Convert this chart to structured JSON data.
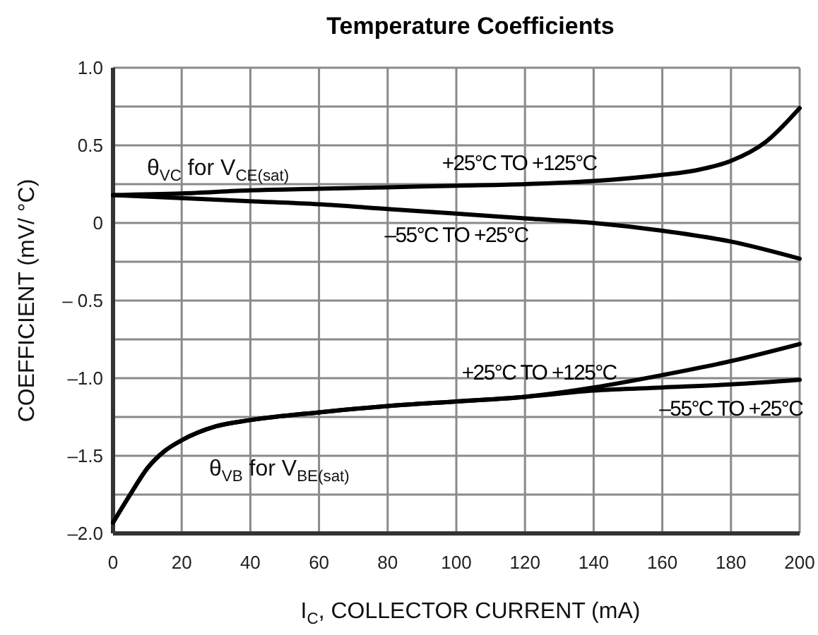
{
  "chart_data": {
    "type": "line",
    "title": "Temperature Coefficients",
    "xlabel": "I$_{C}$, COLLECTOR CURRENT (mA)",
    "ylabel": "COEFFICIENT (mV/ °C)",
    "xlim": [
      0,
      200
    ],
    "xticks": [
      0,
      20,
      40,
      60,
      80,
      100,
      120,
      140,
      160,
      180,
      200
    ],
    "ylim": [
      -2,
      1
    ],
    "yticks": [
      {
        "value": -2,
        "label": "–2.0"
      },
      {
        "value": -1.75,
        "label": null
      },
      {
        "value": -1.5,
        "label": "–1.5"
      },
      {
        "value": -1.25,
        "label": null
      },
      {
        "value": -1,
        "label": "–1.0"
      },
      {
        "value": -0.75,
        "label": null
      },
      {
        "value": -0.5,
        "label": "– 0.5"
      },
      {
        "value": -0.25,
        "label": null
      },
      {
        "value": 0,
        "label": "0"
      },
      {
        "value": 0.25,
        "label": null
      },
      {
        "value": 0.5,
        "label": "0.5"
      },
      {
        "value": 0.75,
        "label": null
      },
      {
        "value": 1,
        "label": "1.0"
      }
    ],
    "grid": true,
    "marker": "none",
    "line_style": "solid",
    "series": [
      {
        "name": "+25°C TO +125°C",
        "color": "#000000",
        "x": [
          0,
          20,
          40,
          60,
          80,
          100,
          120,
          140,
          160,
          170,
          180,
          190,
          200
        ],
        "values": [
          0.18,
          0.19,
          0.21,
          0.22,
          0.23,
          0.24,
          0.25,
          0.27,
          0.31,
          0.34,
          0.4,
          0.52,
          0.74
        ]
      },
      {
        "name": "–55°C TO +25°C",
        "color": "#000000",
        "x": [
          0,
          20,
          40,
          60,
          80,
          100,
          120,
          140,
          160,
          180,
          200
        ],
        "values": [
          0.18,
          0.16,
          0.14,
          0.12,
          0.09,
          0.06,
          0.03,
          0,
          -0.05,
          -0.12,
          -0.23
        ]
      },
      {
        "name": "+25°C TO +125°C",
        "color": "#000000",
        "x": [
          0,
          5,
          10,
          15,
          20,
          30,
          40,
          60,
          80,
          100,
          120,
          140,
          160,
          180,
          200
        ],
        "values": [
          -1.93,
          -1.75,
          -1.58,
          -1.47,
          -1.4,
          -1.31,
          -1.27,
          -1.22,
          -1.18,
          -1.15,
          -1.12,
          -1.06,
          -0.98,
          -0.89,
          -0.78
        ]
      },
      {
        "name": "–55°C TO +25°C",
        "color": "#000000",
        "x": [
          0,
          5,
          10,
          15,
          20,
          30,
          40,
          60,
          80,
          100,
          120,
          140,
          160,
          180,
          200
        ],
        "values": [
          -1.93,
          -1.75,
          -1.58,
          -1.47,
          -1.4,
          -1.31,
          -1.27,
          -1.22,
          -1.18,
          -1.15,
          -1.12,
          -1.08,
          -1.06,
          -1.04,
          -1.01
        ]
      }
    ],
    "annotations": [
      "θ$_{VC}$ for V$_{CE(sat)}$",
      "θ$_{VB}$ for V$_{BE(sat)}$"
    ]
  }
}
